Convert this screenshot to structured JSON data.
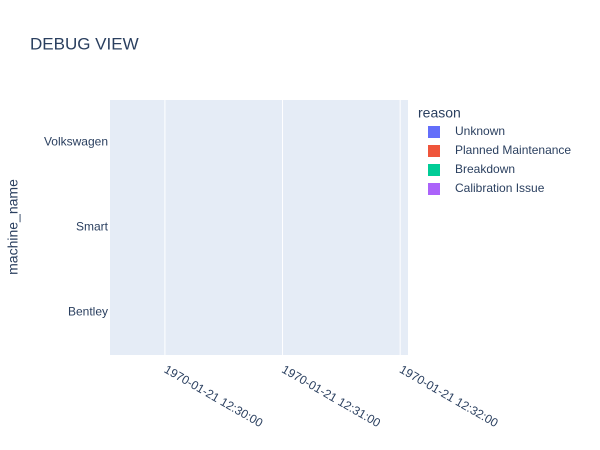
{
  "chart_data": {
    "type": "timeline",
    "title": "DEBUG VIEW",
    "y_label": "machine_name",
    "categories": [
      "Volkswagen",
      "Smart",
      "Bentley"
    ],
    "xlim": [
      "1970-01-21 12:29:32",
      "1970-01-21 12:32:04"
    ],
    "xticks": [
      "1970-01-21 12:30:00",
      "1970-01-21 12:31:00",
      "1970-01-21 12:32:00"
    ],
    "grid": true,
    "legend_title": "reason",
    "legend_position": "right",
    "series": [
      {
        "name": "Unknown",
        "color": "#636efa"
      },
      {
        "name": "Planned Maintenance",
        "color": "#EF553B"
      },
      {
        "name": "Breakdown",
        "color": "#00cc96"
      },
      {
        "name": "Calibration Issue",
        "color": "#ab63fa"
      }
    ]
  }
}
